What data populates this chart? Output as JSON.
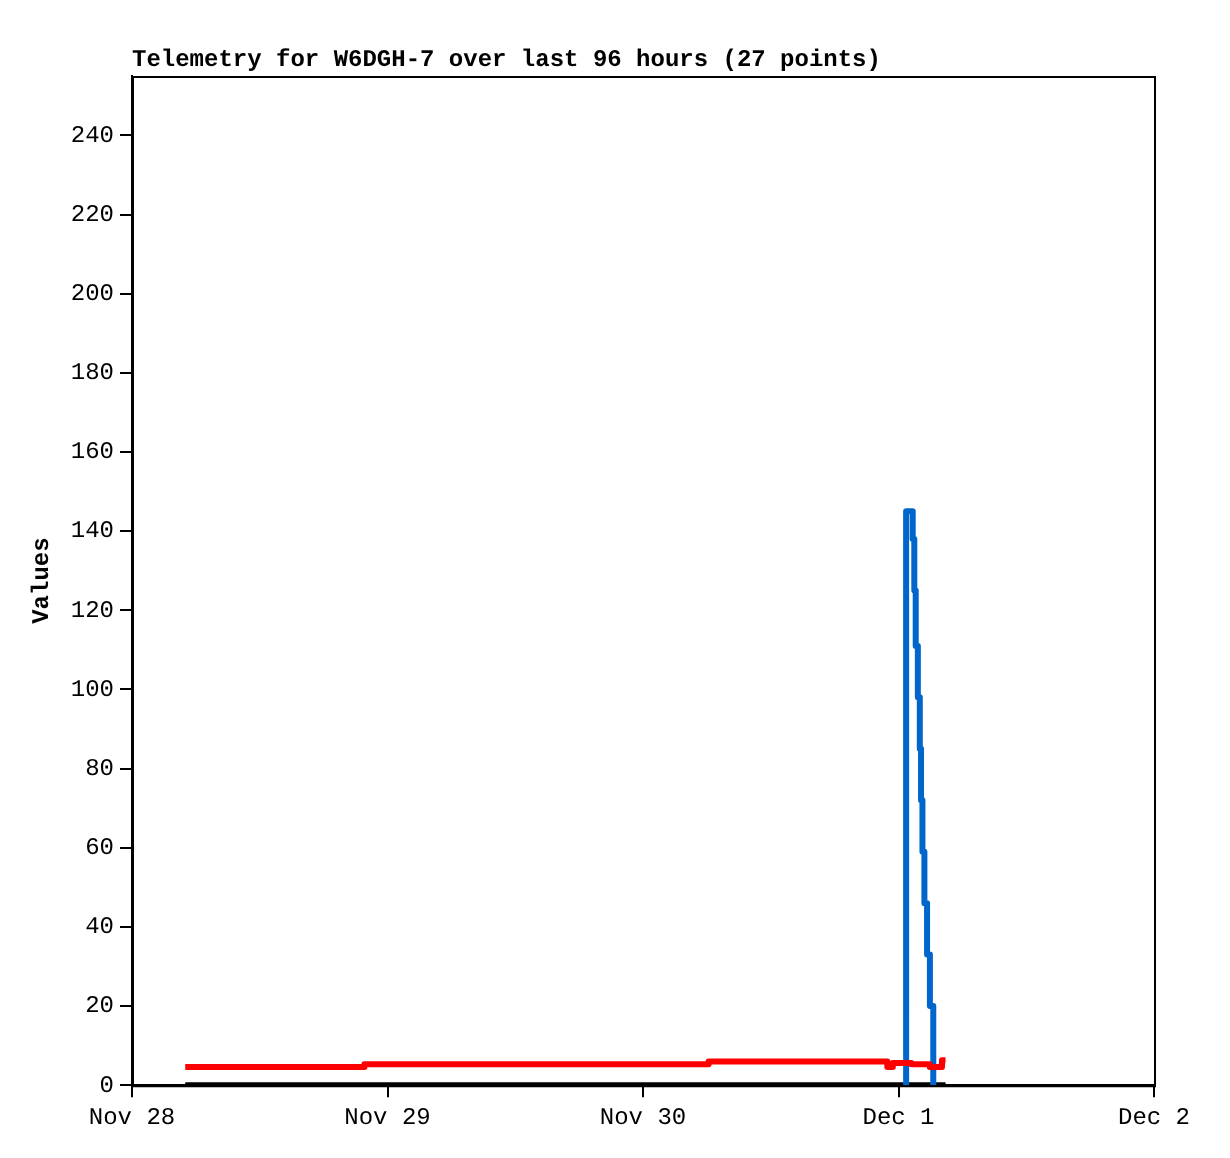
{
  "chart_data": {
    "type": "step",
    "title": "Telemetry for W6DGH-7 over last 96 hours (27 points)",
    "ylabel": "Values",
    "xlim": [
      "--11-28",
      "--12-02"
    ],
    "xticks": [
      {
        "value": "--11-28",
        "label": "Nov 28"
      },
      {
        "value": "--11-29",
        "label": "Nov 29"
      },
      {
        "value": "--11-30",
        "label": "Nov 30"
      },
      {
        "value": "--12-01",
        "label": "Dec 1"
      },
      {
        "value": "--12-02",
        "label": "Dec 2"
      }
    ],
    "ylim": [
      0,
      255
    ],
    "yticks": [
      0,
      20,
      40,
      60,
      80,
      100,
      120,
      140,
      160,
      180,
      200,
      220,
      240
    ],
    "grid": false,
    "legend": false,
    "marker": "none",
    "line_style": "solid",
    "series": [
      {
        "color": "#ff0000",
        "x": [
          "--11-28T05:00",
          "--11-28T21:50",
          "--11-30T06:10",
          "--11-30T22:57",
          "--11-30T23:28",
          "--12-01T01:12",
          "--12-01T02:56",
          "--12-01T04:05",
          "--12-01T04:25"
        ],
        "values": [
          4.6,
          5.3,
          6.0,
          4.6,
          5.6,
          5.3,
          4.6,
          6.3,
          6.3
        ]
      },
      {
        "color": "#0066cc",
        "x": [
          "--12-01T00:30",
          "--12-01T00:43",
          "--12-01T01:20",
          "--12-01T01:29",
          "--12-01T01:37",
          "--12-01T01:49",
          "--12-01T02:00",
          "--12-01T02:07",
          "--12-01T02:15",
          "--12-01T02:26",
          "--12-01T02:41",
          "--12-01T02:57",
          "--12-01T03:16"
        ],
        "values": [
          0,
          145,
          138,
          125,
          111,
          98,
          85,
          72,
          59,
          46,
          33,
          20,
          0
        ]
      },
      {
        "color": "#000000",
        "x": [
          "--11-28T05:00",
          "--12-01T04:25"
        ],
        "values": [
          0,
          0
        ]
      }
    ]
  }
}
